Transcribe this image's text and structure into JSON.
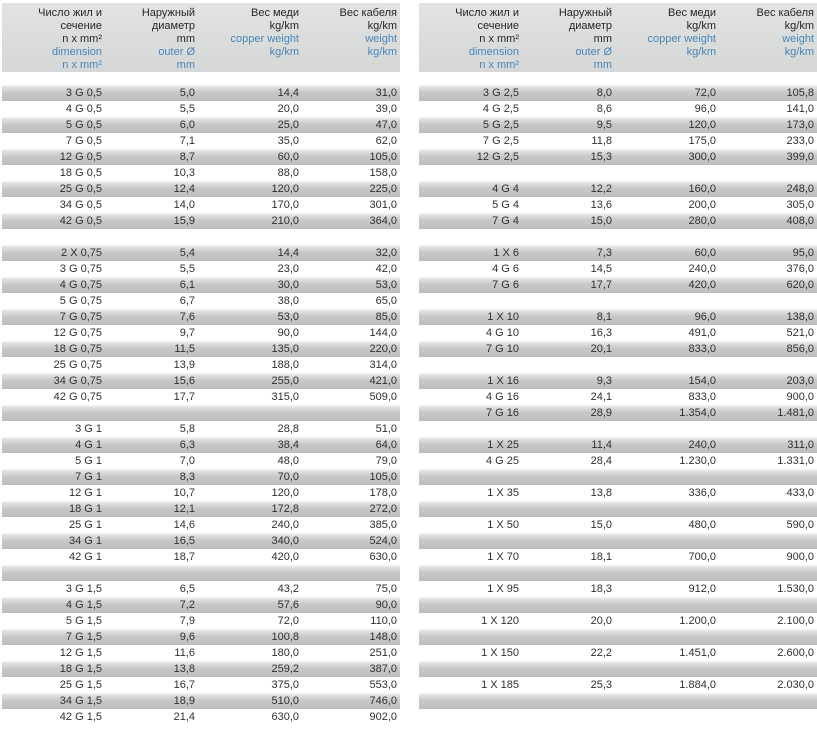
{
  "header_cols": [
    {
      "black": [
        "Число жил и",
        "сечение",
        "n x mm²"
      ],
      "blue": [
        "dimension",
        "n x mm²"
      ]
    },
    {
      "black": [
        "Наружный",
        "диаметр",
        "mm"
      ],
      "blue": [
        "outer Ø",
        "mm"
      ]
    },
    {
      "black": [
        "Вес меди",
        "kg/km"
      ],
      "blue": [
        "copper weight",
        "kg/km"
      ]
    },
    {
      "black": [
        "Вес кабеля",
        "kg/km"
      ],
      "blue": [
        "weight",
        "kg/km"
      ]
    }
  ],
  "colors": {
    "header_background": "#dadcdc",
    "stripe_gray": "#c1c2c3",
    "stripe_white": "#ffffff",
    "text_black": "#262626",
    "text_blue": "#4a86b8"
  },
  "tables": [
    {
      "name": "left",
      "rows": [
        [
          "3 G 0,5",
          "5,0",
          "14,4",
          "31,0"
        ],
        [
          "4 G 0,5",
          "5,5",
          "20,0",
          "39,0"
        ],
        [
          "5 G 0,5",
          "6,0",
          "25,0",
          "47,0"
        ],
        [
          "7 G 0,5",
          "7,1",
          "35,0",
          "62,0"
        ],
        [
          "12 G 0,5",
          "8,7",
          "60,0",
          "105,0"
        ],
        [
          "18 G 0,5",
          "10,3",
          "88,0",
          "158,0"
        ],
        [
          "25 G 0,5",
          "12,4",
          "120,0",
          "225,0"
        ],
        [
          "34 G 0,5",
          "14,0",
          "170,0",
          "301,0"
        ],
        [
          "42 G 0,5",
          "15,9",
          "210,0",
          "364,0"
        ],
        null,
        [
          "2 X 0,75",
          "5,4",
          "14,4",
          "32,0"
        ],
        [
          "3 G 0,75",
          "5,5",
          "23,0",
          "42,0"
        ],
        [
          "4 G 0,75",
          "6,1",
          "30,0",
          "53,0"
        ],
        [
          "5 G 0,75",
          "6,7",
          "38,0",
          "65,0"
        ],
        [
          "7 G 0,75",
          "7,6",
          "53,0",
          "85,0"
        ],
        [
          "12 G 0,75",
          "9,7",
          "90,0",
          "144,0"
        ],
        [
          "18 G 0,75",
          "11,5",
          "135,0",
          "220,0"
        ],
        [
          "25 G 0,75",
          "13,9",
          "188,0",
          "314,0"
        ],
        [
          "34 G 0,75",
          "15,6",
          "255,0",
          "421,0"
        ],
        [
          "42 G 0,75",
          "17,7",
          "315,0",
          "509,0"
        ],
        null,
        [
          "3 G 1",
          "5,8",
          "28,8",
          "51,0"
        ],
        [
          "4 G 1",
          "6,3",
          "38,4",
          "64,0"
        ],
        [
          "5 G 1",
          "7,0",
          "48,0",
          "79,0"
        ],
        [
          "7 G 1",
          "8,3",
          "70,0",
          "105,0"
        ],
        [
          "12 G 1",
          "10,7",
          "120,0",
          "178,0"
        ],
        [
          "18 G 1",
          "12,1",
          "172,8",
          "272,0"
        ],
        [
          "25 G 1",
          "14,6",
          "240,0",
          "385,0"
        ],
        [
          "34 G 1",
          "16,5",
          "340,0",
          "524,0"
        ],
        [
          "42 G 1",
          "18,7",
          "420,0",
          "630,0"
        ],
        null,
        [
          "3 G 1,5",
          "6,5",
          "43,2",
          "75,0"
        ],
        [
          "4 G 1,5",
          "7,2",
          "57,6",
          "90,0"
        ],
        [
          "5 G 1,5",
          "7,9",
          "72,0",
          "110,0"
        ],
        [
          "7 G 1,5",
          "9,6",
          "100,8",
          "148,0"
        ],
        [
          "12 G 1,5",
          "11,6",
          "180,0",
          "251,0"
        ],
        [
          "18 G 1,5",
          "13,8",
          "259,2",
          "387,0"
        ],
        [
          "25 G 1,5",
          "16,7",
          "375,0",
          "553,0"
        ],
        [
          "34 G 1,5",
          "18,9",
          "510,0",
          "746,0"
        ],
        [
          "42 G 1,5",
          "21,4",
          "630,0",
          "902,0"
        ]
      ]
    },
    {
      "name": "right",
      "rows": [
        [
          "3 G 2,5",
          "8,0",
          "72,0",
          "105,8"
        ],
        [
          "4 G 2,5",
          "8,6",
          "96,0",
          "141,0"
        ],
        [
          "5 G 2,5",
          "9,5",
          "120,0",
          "173,0"
        ],
        [
          "7 G 2,5",
          "11,8",
          "175,0",
          "233,0"
        ],
        [
          "12 G 2,5",
          "15,3",
          "300,0",
          "399,0"
        ],
        null,
        [
          "4 G 4",
          "12,2",
          "160,0",
          "248,0"
        ],
        [
          "5 G 4",
          "13,6",
          "200,0",
          "305,0"
        ],
        [
          "7 G 4",
          "15,0",
          "280,0",
          "408,0"
        ],
        null,
        [
          "1 X 6",
          "7,3",
          "60,0",
          "95,0"
        ],
        [
          "4 G 6",
          "14,5",
          "240,0",
          "376,0"
        ],
        [
          "7 G 6",
          "17,7",
          "420,0",
          "620,0"
        ],
        null,
        [
          "1 X 10",
          "8,1",
          "96,0",
          "138,0"
        ],
        [
          "4 G 10",
          "16,3",
          "491,0",
          "521,0"
        ],
        [
          "7 G 10",
          "20,1",
          "833,0",
          "856,0"
        ],
        null,
        [
          "1 X 16",
          "9,3",
          "154,0",
          "203,0"
        ],
        [
          "4 G 16",
          "24,1",
          "833,0",
          "900,0"
        ],
        [
          "7 G 16",
          "28,9",
          "1.354,0",
          "1.481,0"
        ],
        null,
        [
          "1 X 25",
          "11,4",
          "240,0",
          "311,0"
        ],
        [
          "4 G 25",
          "28,4",
          "1.230,0",
          "1.331,0"
        ],
        null,
        [
          "1 X 35",
          "13,8",
          "336,0",
          "433,0"
        ],
        null,
        [
          "1 X 50",
          "15,0",
          "480,0",
          "590,0"
        ],
        null,
        [
          "1 X 70",
          "18,1",
          "700,0",
          "900,0"
        ],
        null,
        [
          "1 X 95",
          "18,3",
          "912,0",
          "1.530,0"
        ],
        null,
        [
          "1 X 120",
          "20,0",
          "1.200,0",
          "2.100,0"
        ],
        null,
        [
          "1 X 150",
          "22,2",
          "1.451,0",
          "2.600,0"
        ],
        null,
        [
          "1 X 185",
          "25,3",
          "1.884,0",
          "2.030,0"
        ],
        null,
        null
      ]
    }
  ]
}
